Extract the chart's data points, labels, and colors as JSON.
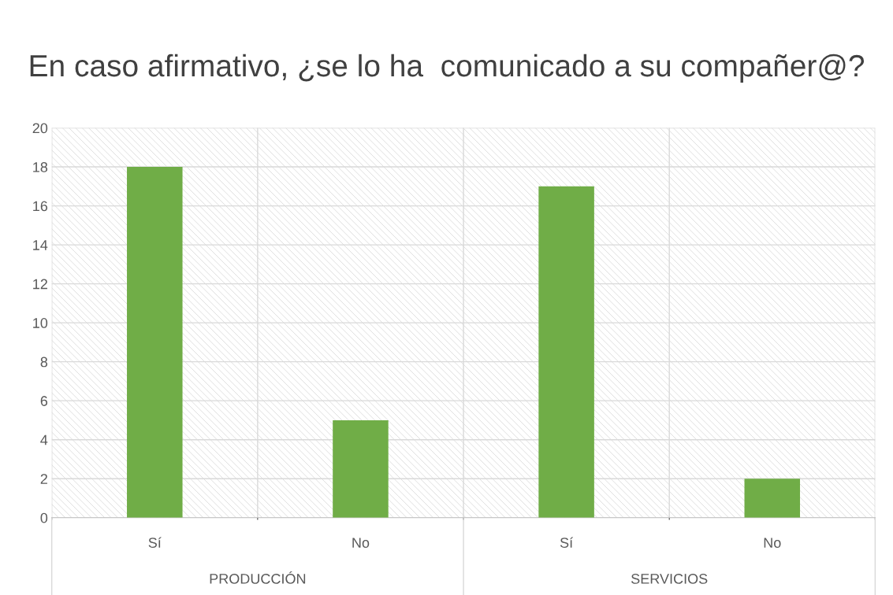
{
  "chart_data": {
    "type": "bar",
    "title": "En caso afirmativo, ¿se lo ha  comunicado a su compañer@?",
    "categories": [
      "Sí",
      "No",
      "Sí",
      "No"
    ],
    "values": [
      18,
      5,
      17,
      2
    ],
    "color": "#70ad47",
    "annotations": [
      "PRODUCCIÓN",
      "SERVICIOS"
    ],
    "ylim": [
      0,
      20
    ],
    "yticks": [
      0,
      2,
      4,
      6,
      8,
      10,
      12,
      14,
      16,
      18,
      20
    ],
    "grid": true
  }
}
